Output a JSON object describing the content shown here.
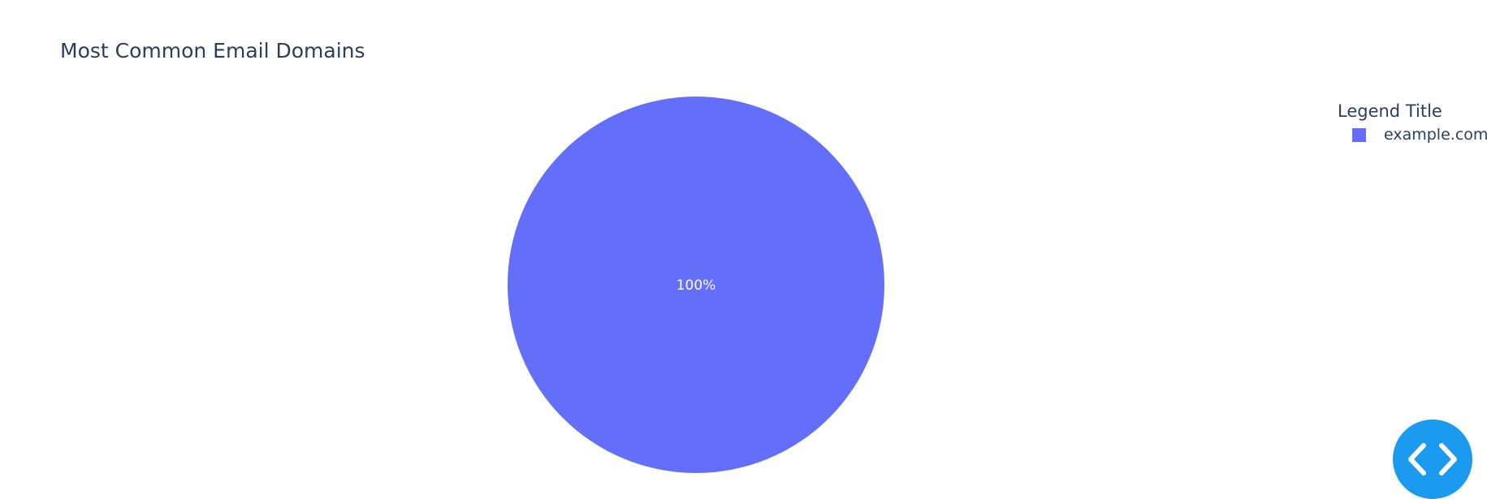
{
  "chart_data": {
    "type": "pie",
    "title": "Most Common Email Domains",
    "legend_title": "Legend Title",
    "legend_position": "top-right",
    "slices": [
      {
        "label": "example.com",
        "value": 1,
        "percent_label": "100%",
        "color": "#636efa"
      }
    ]
  },
  "colors": {
    "text": "#2a3f5f",
    "fab": "#1a9bf0",
    "slice_label": "#ffffff"
  },
  "fab": {
    "icon": "code-brackets-icon"
  }
}
